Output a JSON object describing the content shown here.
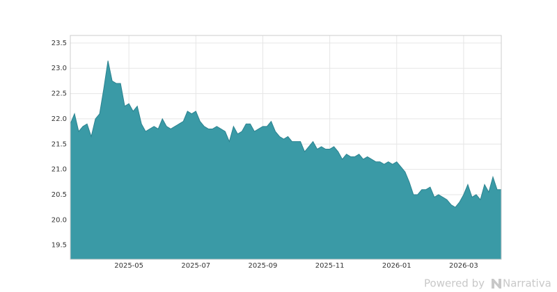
{
  "chart_data": {
    "type": "area",
    "categories": [
      null,
      null,
      null,
      null,
      null,
      null,
      null,
      null,
      null,
      null,
      null,
      null,
      null,
      null,
      "2025-05",
      null,
      null,
      null,
      null,
      null,
      null,
      null,
      null,
      null,
      null,
      null,
      null,
      null,
      null,
      null,
      "2025-07",
      null,
      null,
      null,
      null,
      null,
      null,
      null,
      null,
      null,
      null,
      null,
      null,
      null,
      null,
      null,
      "2025-09",
      null,
      null,
      null,
      null,
      null,
      null,
      null,
      null,
      null,
      null,
      null,
      null,
      null,
      null,
      null,
      "2025-11",
      null,
      null,
      null,
      null,
      null,
      null,
      null,
      null,
      null,
      null,
      null,
      null,
      null,
      null,
      null,
      "2026-01",
      null,
      null,
      null,
      null,
      null,
      null,
      null,
      null,
      null,
      null,
      null,
      null,
      null,
      null,
      null,
      "2026-03",
      null,
      null,
      null,
      null,
      null,
      null,
      null,
      null,
      null
    ],
    "values": [
      21.9,
      22.1,
      21.75,
      21.85,
      21.9,
      21.65,
      22.0,
      22.1,
      22.6,
      23.15,
      22.75,
      22.7,
      22.7,
      22.25,
      22.3,
      22.15,
      22.25,
      21.9,
      21.75,
      21.8,
      21.85,
      21.8,
      22.0,
      21.85,
      21.8,
      21.85,
      21.9,
      21.95,
      22.15,
      22.1,
      22.15,
      21.95,
      21.85,
      21.8,
      21.8,
      21.85,
      21.8,
      21.75,
      21.55,
      21.85,
      21.7,
      21.75,
      21.9,
      21.9,
      21.75,
      21.8,
      21.85,
      21.85,
      21.95,
      21.75,
      21.65,
      21.6,
      21.65,
      21.55,
      21.55,
      21.55,
      21.35,
      21.45,
      21.55,
      21.4,
      21.45,
      21.4,
      21.4,
      21.45,
      21.35,
      21.2,
      21.3,
      21.25,
      21.25,
      21.3,
      21.2,
      21.25,
      21.2,
      21.15,
      21.15,
      21.1,
      21.15,
      21.1,
      21.15,
      21.05,
      20.95,
      20.75,
      20.5,
      20.5,
      20.6,
      20.6,
      20.65,
      20.45,
      20.5,
      20.45,
      20.4,
      20.3,
      20.25,
      20.35,
      20.5,
      20.7,
      20.45,
      20.5,
      20.4,
      20.7,
      20.55,
      20.85,
      20.6,
      20.6
    ],
    "color": "#3a9aa6",
    "ylim": [
      19.22,
      23.65
    ],
    "yticks": [
      19.5,
      {
        "value": 20,
        "label": "20.0"
      },
      20.5,
      {
        "value": 21,
        "label": "21.0"
      },
      21.5,
      {
        "value": 22,
        "label": "22.0"
      },
      22.5,
      {
        "value": 23,
        "label": "23.0"
      },
      23.5
    ],
    "grid": true
  },
  "watermark": {
    "prefix": "Powered by",
    "brand": "Narrativa"
  }
}
